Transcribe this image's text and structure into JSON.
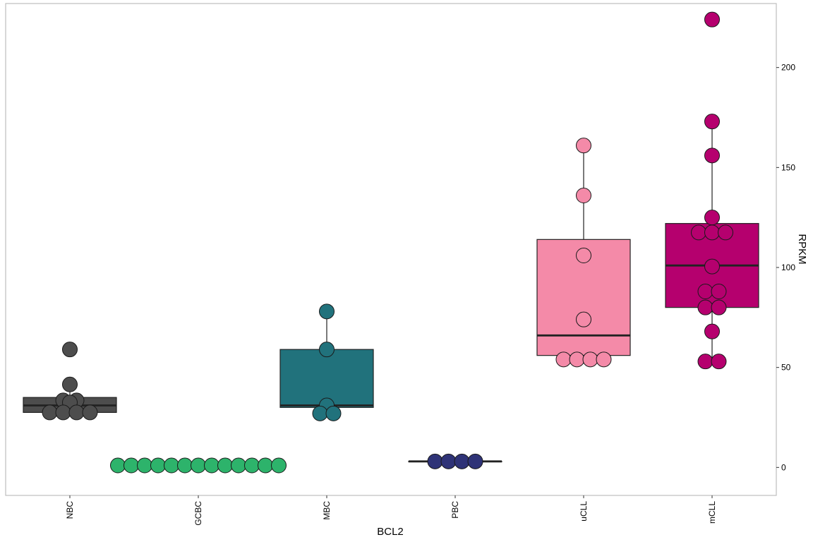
{
  "chart_data": {
    "type": "box",
    "xlabel": "BCL2",
    "ylabel": "RPKM",
    "ylim": [
      -14,
      232
    ],
    "yticks": [
      0,
      50,
      100,
      150,
      200
    ],
    "y_axis_side": "right",
    "grid": false,
    "legend": "none",
    "categories": [
      {
        "name": "NBC",
        "color": "#4d4d4d",
        "box": {
          "q1": 27.5,
          "median": 31,
          "q3": 35
        },
        "points": [
          59,
          41.5,
          33.5,
          33.5,
          32.5,
          27.5,
          27.5,
          27.5,
          27.5
        ]
      },
      {
        "name": "GCBC",
        "color": "#2db36b",
        "box": {
          "q1": 1,
          "median": 1,
          "q3": 1
        },
        "points": [
          1,
          1,
          1,
          1,
          1,
          1,
          1,
          1,
          1,
          1,
          1,
          1,
          1
        ]
      },
      {
        "name": "MBC",
        "color": "#21727c",
        "box": {
          "q1": 30,
          "median": 31,
          "q3": 59
        },
        "points": [
          78,
          59,
          31,
          27,
          27
        ]
      },
      {
        "name": "PBC",
        "color": "#2f3377",
        "box": {
          "q1": 3,
          "median": 3,
          "q3": 3
        },
        "points": [
          3,
          3,
          3,
          3
        ]
      },
      {
        "name": "uCLL",
        "color": "#f48aa8",
        "box": {
          "q1": 56,
          "median": 66,
          "q3": 114,
          "whisker_high": 161
        },
        "points": [
          161,
          136,
          106,
          74,
          54,
          54,
          54,
          54
        ]
      },
      {
        "name": "mCLL",
        "color": "#b5006e",
        "box": {
          "q1": 80,
          "median": 101,
          "q3": 122,
          "whisker_low": 53,
          "whisker_high": 173
        },
        "points": [
          224,
          173,
          156,
          125,
          117.5,
          117.5,
          117.5,
          100.5,
          88,
          88,
          80,
          80,
          68,
          53,
          53
        ]
      }
    ]
  }
}
